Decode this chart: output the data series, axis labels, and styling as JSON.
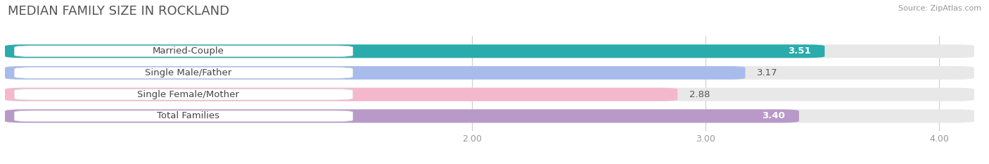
{
  "title": "MEDIAN FAMILY SIZE IN ROCKLAND",
  "source": "Source: ZipAtlas.com",
  "categories": [
    "Married-Couple",
    "Single Male/Father",
    "Single Female/Mother",
    "Total Families"
  ],
  "values": [
    3.51,
    3.17,
    2.88,
    3.4
  ],
  "bar_colors": [
    "#2aacac",
    "#a8bceb",
    "#f4b8cc",
    "#b899c8"
  ],
  "value_label_colors": [
    "#ffffff",
    "#555555",
    "#555555",
    "#ffffff"
  ],
  "xlim": [
    0.0,
    4.15
  ],
  "xticks": [
    2.0,
    3.0,
    4.0
  ],
  "xtick_labels": [
    "2.00",
    "3.00",
    "4.00"
  ],
  "background_color": "#ffffff",
  "bar_background_color": "#e8e8e8",
  "title_fontsize": 13,
  "label_fontsize": 9.5,
  "value_fontsize": 9.5,
  "bar_height": 0.62,
  "bar_gap": 0.38
}
